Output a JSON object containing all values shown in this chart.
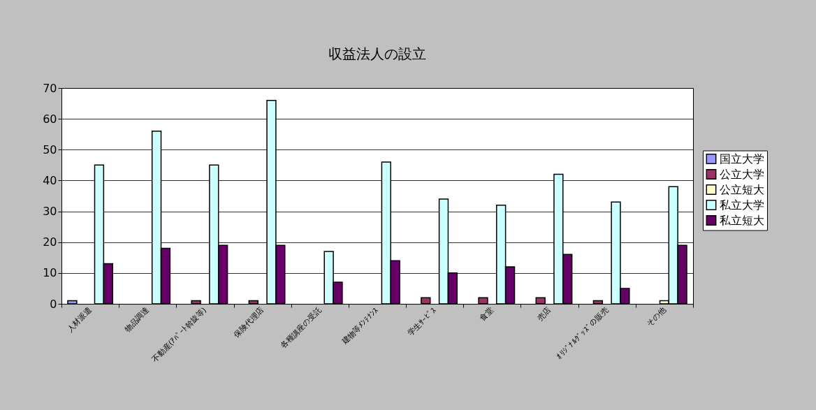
{
  "chart_data": {
    "type": "bar",
    "title": "収益法人の設立",
    "categories": [
      "人材派遣",
      "物品調達",
      "不動産(ｱﾊﾟｰﾄ斡旋等)",
      "保険代理店",
      "各種講座の受託",
      "建物等ﾒﾝﾃﾅﾝｽ",
      "学生ｻｰﾋﾞｽ",
      "食堂",
      "売店",
      "ｵﾘｼﾞﾅﾙｸﾞｯｽﾞの販売",
      "その他"
    ],
    "series": [
      {
        "name": "国立大学",
        "color": "#9999ff",
        "values": [
          1,
          null,
          null,
          null,
          null,
          null,
          null,
          null,
          null,
          null,
          null
        ]
      },
      {
        "name": "公立大学",
        "color": "#993366",
        "values": [
          null,
          null,
          1,
          1,
          null,
          null,
          2,
          2,
          2,
          1,
          null
        ]
      },
      {
        "name": "公立短大",
        "color": "#ffffcc",
        "values": [
          null,
          null,
          null,
          null,
          null,
          null,
          null,
          null,
          null,
          null,
          1
        ]
      },
      {
        "name": "私立大学",
        "color": "#ccffff",
        "values": [
          45,
          56,
          45,
          66,
          17,
          46,
          34,
          32,
          42,
          33,
          38
        ]
      },
      {
        "name": "私立短大",
        "color": "#660066",
        "values": [
          13,
          18,
          19,
          19,
          7,
          14,
          10,
          12,
          16,
          5,
          19
        ]
      }
    ],
    "ylim": [
      0,
      70
    ],
    "yticks": [
      0,
      10,
      20,
      30,
      40,
      50,
      60,
      70
    ],
    "grid": "y",
    "legend": "right"
  }
}
